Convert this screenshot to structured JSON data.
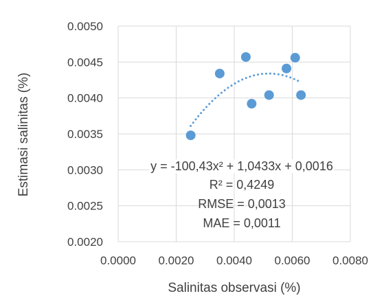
{
  "chart_data": {
    "type": "scatter",
    "title": "",
    "xlabel": "Salinitas observasi (%)",
    "ylabel": "Estimasi salinitas (%)",
    "xlim": [
      0,
      0.008
    ],
    "ylim": [
      0.002,
      0.005
    ],
    "x_ticks": [
      "0.0000",
      "0.0020",
      "0.0040",
      "0.0060",
      "0.0080"
    ],
    "y_ticks": [
      "0.0020",
      "0.0025",
      "0.0030",
      "0.0035",
      "0.0040",
      "0.0045",
      "0.0050"
    ],
    "grid": true,
    "legend": "none",
    "marker_color": "#5b9bd5",
    "trendline": {
      "type": "polynomial",
      "order": 2,
      "style": "dotted",
      "color": "#5b9bd5",
      "x_range": [
        0.0025,
        0.0063
      ]
    },
    "points": [
      {
        "x": 0.0025,
        "y": 0.00348
      },
      {
        "x": 0.0035,
        "y": 0.00434
      },
      {
        "x": 0.0044,
        "y": 0.00457
      },
      {
        "x": 0.0046,
        "y": 0.00392
      },
      {
        "x": 0.0052,
        "y": 0.00404
      },
      {
        "x": 0.0058,
        "y": 0.00441
      },
      {
        "x": 0.0061,
        "y": 0.00456
      },
      {
        "x": 0.0063,
        "y": 0.00404
      }
    ],
    "annotations": {
      "equation": "y = -100,43x² + 1,0433x + 0,0016",
      "r2": "R² = 0,4249",
      "rmse": "RMSE = 0,0013",
      "mae": "MAE = 0,0011"
    }
  }
}
